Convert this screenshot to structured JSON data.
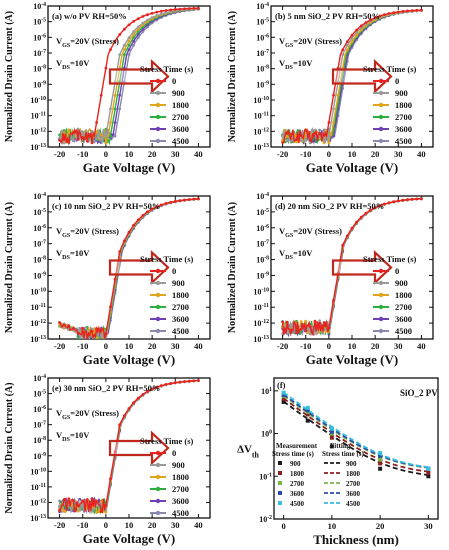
{
  "figure": {
    "panels": [
      {
        "key": "a",
        "ylabel": "Normalized Drain Current (A)",
        "xlabel": "Gate Voltage (V)",
        "title": "(a) w/o PV  RH=50%",
        "annot1": "V_GS=20V (Stress)",
        "annot2": "V_DS=10V",
        "legend_title": "Stress Time (s)",
        "xticks": [
          "-20",
          "-10",
          "0",
          "10",
          "20",
          "30",
          "40"
        ],
        "yticks": [
          "10^-4",
          "10^-5",
          "10^-6",
          "10^-7",
          "10^-8",
          "10^-9",
          "10^-10",
          "10^-11",
          "10^-12",
          "10^-13"
        ]
      },
      {
        "key": "b",
        "ylabel": "Normalized Drain Current (A)",
        "xlabel": "Gate Voltage (V)",
        "title": "(b) 5 nm SiO2 PV  RH=50%",
        "annot1": "V_GS=20V (Stress)",
        "annot2": "V_DS=10V",
        "legend_title": "Stress Time (s)",
        "xticks": [
          "-20",
          "-10",
          "0",
          "10",
          "20",
          "30",
          "40"
        ],
        "yticks": [
          "10^-4",
          "10^-5",
          "10^-6",
          "10^-7",
          "10^-8",
          "10^-9",
          "10^-10",
          "10^-11",
          "10^-12",
          "10^-13"
        ]
      },
      {
        "key": "c",
        "ylabel": "Normalized Drain Current (A)",
        "xlabel": "Gate Voltage (V)",
        "title": "(c) 10 nm SiO2 PV  RH=50%",
        "annot1": "V_GS=20V (Stress)",
        "annot2": "V_DS=10V",
        "legend_title": "Stress Time (s)",
        "xticks": [
          "-20",
          "-10",
          "0",
          "10",
          "20",
          "30",
          "40"
        ],
        "yticks": [
          "10^-4",
          "10^-5",
          "10^-6",
          "10^-7",
          "10^-8",
          "10^-9",
          "10^-10",
          "10^-11",
          "10^-12",
          "10^-13"
        ]
      },
      {
        "key": "d",
        "ylabel": "Normalized Drain Current (A)",
        "xlabel": "Gate Voltage (V)",
        "title": "(d) 20 nm SiO2 PV  RH=50%",
        "annot1": "V_GS=20V (Stress)",
        "annot2": "V_DS=10V",
        "legend_title": "Stress Time (s)",
        "xticks": [
          "-20",
          "-10",
          "0",
          "10",
          "20",
          "30",
          "40"
        ],
        "yticks": [
          "10^-4",
          "10^-5",
          "10^-6",
          "10^-7",
          "10^-8",
          "10^-9",
          "10^-10",
          "10^-11",
          "10^-12",
          "10^-13"
        ]
      },
      {
        "key": "e",
        "ylabel": "Normalized Drain Current (A)",
        "xlabel": "Gate Voltage (V)",
        "title": "(e) 30 nm SiO2 PV  RH=50%",
        "annot1": "V_GS=20V (Stress)",
        "annot2": "V_DS=10V",
        "legend_title": "Stress Time (s)",
        "xticks": [
          "-20",
          "-10",
          "0",
          "10",
          "20",
          "30",
          "40"
        ],
        "yticks": [
          "10^-4",
          "10^-5",
          "10^-6",
          "10^-7",
          "10^-8",
          "10^-9",
          "10^-10",
          "10^-11",
          "10^-12",
          "10^-13"
        ]
      }
    ],
    "stress_times": [
      "0",
      "900",
      "1800",
      "2700",
      "3600",
      "4500"
    ],
    "colors": [
      "#e8231f",
      "#9a9a9a",
      "#e0a51a",
      "#2fae3f",
      "#6e3fb5",
      "#8a8ab0"
    ],
    "arrow_color": "#c0281e",
    "panel_f": {
      "key": "f",
      "title": "SiO2 PV",
      "ylabel": "ΔV_th",
      "xlabel": "Thickness (nm)",
      "xticks": [
        "0",
        "10",
        "20",
        "30"
      ],
      "yticks": [
        "10^1",
        "10^0",
        "10^-1",
        "10^-2"
      ],
      "legend_meas_title": "Measurement Stress time (s)",
      "legend_fit_title": "Fitting Stress time (s)",
      "legend_items": [
        "900",
        "1800",
        "2700",
        "3600",
        "4500"
      ],
      "colors": [
        "#1b1b1b",
        "#8c2121",
        "#7bb54b",
        "#2c4ba8",
        "#37bfe0"
      ]
    }
  },
  "chart_data": [
    {
      "panel": "a",
      "type": "line",
      "title": "(a) w/o PV  RH=50%",
      "xlabel": "Gate Voltage (V)",
      "ylabel": "Normalized Drain Current (A)",
      "xlim": [
        -25,
        45
      ],
      "ylim_log10": [
        -13,
        -4
      ],
      "yscale": "log",
      "x": [
        -20,
        -10,
        0,
        10,
        20,
        30,
        40
      ],
      "series_names": [
        "0",
        "900",
        "1800",
        "2700",
        "3600",
        "4500"
      ],
      "turn_on_voltage": [
        -5,
        0,
        1,
        2,
        3,
        4
      ],
      "off_current_log10": -12.3,
      "on_current_log10_at_40V": -4.1
    },
    {
      "panel": "b",
      "type": "line",
      "title": "(b) 5 nm SiO2 PV  RH=50%",
      "xlabel": "Gate Voltage (V)",
      "ylabel": "Normalized Drain Current (A)",
      "xlim": [
        -25,
        45
      ],
      "ylim_log10": [
        -13,
        -4
      ],
      "yscale": "log",
      "series_names": [
        "0",
        "900",
        "1800",
        "2700",
        "3600",
        "4500"
      ],
      "turn_on_voltage": [
        -1,
        0,
        1,
        1.5,
        2,
        2.5
      ],
      "off_current_log10": -12.3,
      "on_current_log10_at_40V": -4.2
    },
    {
      "panel": "c",
      "type": "line",
      "title": "(c) 10 nm SiO2 PV  RH=50%",
      "xlabel": "Gate Voltage (V)",
      "ylabel": "Normalized Drain Current (A)",
      "xlim": [
        -25,
        45
      ],
      "ylim_log10": [
        -13,
        -4
      ],
      "yscale": "log",
      "series_names": [
        "0",
        "900",
        "1800",
        "2700",
        "3600",
        "4500"
      ],
      "turn_on_voltage": [
        0,
        0.2,
        0.4,
        0.6,
        0.8,
        1
      ],
      "off_current_log10": -12.7,
      "on_current_log10_at_40V": -4.1
    },
    {
      "panel": "d",
      "type": "line",
      "title": "(d) 20 nm SiO2 PV  RH=50%",
      "xlabel": "Gate Voltage (V)",
      "ylabel": "Normalized Drain Current (A)",
      "xlim": [
        -25,
        45
      ],
      "ylim_log10": [
        -13,
        -4
      ],
      "yscale": "log",
      "series_names": [
        "0",
        "900",
        "1800",
        "2700",
        "3600",
        "4500"
      ],
      "turn_on_voltage": [
        0,
        0.1,
        0.2,
        0.3,
        0.4,
        0.5
      ],
      "off_current_log10": -12.3,
      "on_current_log10_at_40V": -4.1
    },
    {
      "panel": "e",
      "type": "line",
      "title": "(e) 30 nm SiO2 PV  RH=50%",
      "xlabel": "Gate Voltage (V)",
      "ylabel": "Normalized Drain Current (A)",
      "xlim": [
        -25,
        45
      ],
      "ylim_log10": [
        -13,
        -4
      ],
      "yscale": "log",
      "series_names": [
        "0",
        "900",
        "1800",
        "2700",
        "3600",
        "4500"
      ],
      "turn_on_voltage": [
        0,
        0.1,
        0.2,
        0.3,
        0.4,
        0.5
      ],
      "off_current_log10": -12.2,
      "on_current_log10_at_40V": -4.1
    },
    {
      "panel": "f",
      "type": "scatter",
      "title": "SiO2 PV",
      "xlabel": "Thickness (nm)",
      "ylabel": "ΔV_th",
      "yscale": "log",
      "xlim": [
        -2,
        32
      ],
      "ylim_log10": [
        -2,
        1.3
      ],
      "x": [
        0,
        5,
        10,
        20,
        30
      ],
      "series": [
        {
          "name": "900",
          "values": [
            5.5,
            2.0,
            0.5,
            0.15,
            0.1
          ]
        },
        {
          "name": "1800",
          "values": [
            6.5,
            2.8,
            0.8,
            0.2,
            0.12
          ]
        },
        {
          "name": "2700",
          "values": [
            7.5,
            3.2,
            1.0,
            0.25,
            0.15
          ]
        },
        {
          "name": "3600",
          "values": [
            8.0,
            3.5,
            1.1,
            0.3,
            0.15
          ]
        },
        {
          "name": "4500",
          "values": [
            9.0,
            4.0,
            1.3,
            0.35,
            0.15
          ]
        }
      ]
    }
  ]
}
